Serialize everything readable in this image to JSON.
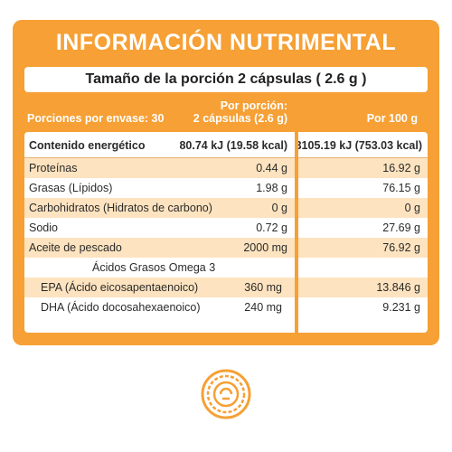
{
  "title": "INFORMACIÓN NUTRIMENTAL",
  "serving_size": "Tamaño de la porción 2 cápsulas ( 2.6 g )",
  "header": {
    "servings_per_container": "Porciones por envase: 30",
    "per_serving_line1": "Por porción:",
    "per_serving_line2": "2 cápsulas (2.6 g)",
    "per_100g": "Por 100 g"
  },
  "rows": [
    {
      "label": "Contenido energético",
      "per_serving": "80.74 kJ (19.58 kcal)",
      "per_100g": "3105.19 kJ (753.03 kcal)"
    },
    {
      "label": "Proteínas",
      "per_serving": "0.44 g",
      "per_100g": "16.92 g"
    },
    {
      "label": "Grasas (Lípidos)",
      "per_serving": "1.98 g",
      "per_100g": "76.15 g"
    },
    {
      "label": "Carbohidratos (Hidratos de carbono)",
      "per_serving": "0 g",
      "per_100g": "0 g"
    },
    {
      "label": "Sodio",
      "per_serving": "0.72 g",
      "per_100g": "27.69 g"
    },
    {
      "label": "Aceite de pescado",
      "per_serving": "2000 mg",
      "per_100g": "76.92 g"
    },
    {
      "label": "Ácidos Grasos Omega 3",
      "per_serving": "",
      "per_100g": ""
    },
    {
      "label": "EPA (Ácido eicosapentaenoico)",
      "per_serving": "360 mg",
      "per_100g": "13.846 g"
    },
    {
      "label": "DHA (Ácido docosahexaenoico)",
      "per_serving": "240 mg",
      "per_100g": "9.231 g"
    }
  ],
  "colors": {
    "accent": "#f6a035",
    "row_shade": "#fde3bf"
  },
  "logo_icon": "circular-badge-icon"
}
